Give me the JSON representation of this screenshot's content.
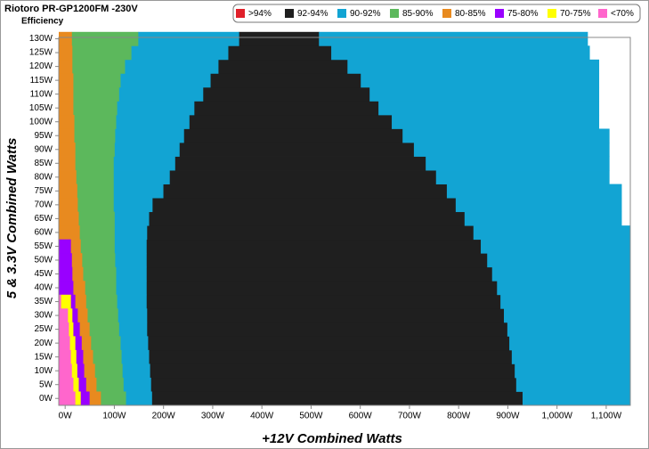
{
  "chart_data": {
    "type": "efficiency-map",
    "title": "Riotoro PR-GP1200FM -230V",
    "subtitle": "Efficiency",
    "xlabel": "+12V Combined Watts",
    "ylabel": "5 & 3.3V Combined Watts",
    "xlim": [
      -13,
      1149
    ],
    "ylim": [
      -2.5,
      130.5
    ],
    "xticks": [
      {
        "value": 0,
        "label": "0W"
      },
      {
        "value": 100,
        "label": "100W"
      },
      {
        "value": 200,
        "label": "200W"
      },
      {
        "value": 300,
        "label": "300W"
      },
      {
        "value": 400,
        "label": "400W"
      },
      {
        "value": 500,
        "label": "500W"
      },
      {
        "value": 600,
        "label": "600W"
      },
      {
        "value": 700,
        "label": "700W"
      },
      {
        "value": 800,
        "label": "800W"
      },
      {
        "value": 900,
        "label": "900W"
      },
      {
        "value": 1000,
        "label": "1,000W"
      },
      {
        "value": 1100,
        "label": "1,100W"
      }
    ],
    "yticks": [
      {
        "value": 0,
        "label": "0W"
      },
      {
        "value": 5,
        "label": "5W"
      },
      {
        "value": 10,
        "label": "10W"
      },
      {
        "value": 15,
        "label": "15W"
      },
      {
        "value": 20,
        "label": "20W"
      },
      {
        "value": 25,
        "label": "25W"
      },
      {
        "value": 30,
        "label": "30W"
      },
      {
        "value": 35,
        "label": "35W"
      },
      {
        "value": 40,
        "label": "40W"
      },
      {
        "value": 45,
        "label": "45W"
      },
      {
        "value": 50,
        "label": "50W"
      },
      {
        "value": 55,
        "label": "55W"
      },
      {
        "value": 60,
        "label": "60W"
      },
      {
        "value": 65,
        "label": "65W"
      },
      {
        "value": 70,
        "label": "70W"
      },
      {
        "value": 75,
        "label": "75W"
      },
      {
        "value": 80,
        "label": "80W"
      },
      {
        "value": 85,
        "label": "85W"
      },
      {
        "value": 90,
        "label": "90W"
      },
      {
        "value": 95,
        "label": "95W"
      },
      {
        "value": 100,
        "label": "100W"
      },
      {
        "value": 105,
        "label": "105W"
      },
      {
        "value": 110,
        "label": "110W"
      },
      {
        "value": 115,
        "label": "115W"
      },
      {
        "value": 120,
        "label": "120W"
      },
      {
        "value": 125,
        "label": "125W"
      },
      {
        "value": 130,
        "label": "130W"
      }
    ],
    "series": [
      {
        "name": ">94%",
        "color": "#e0202a",
        "spans": []
      },
      {
        "name": "92-94%",
        "color": "#1f1f1f",
        "spans": [
          [
            0,
            176,
            930
          ],
          [
            5,
            174,
            917
          ],
          [
            10,
            172,
            914
          ],
          [
            15,
            170,
            908
          ],
          [
            20,
            168,
            903
          ],
          [
            25,
            166,
            899
          ],
          [
            30,
            166,
            892
          ],
          [
            35,
            165,
            885
          ],
          [
            40,
            165,
            878
          ],
          [
            45,
            165,
            868
          ],
          [
            50,
            165,
            858
          ],
          [
            55,
            165,
            845
          ],
          [
            60,
            166,
            830
          ],
          [
            65,
            170,
            812
          ],
          [
            70,
            177,
            794
          ],
          [
            75,
            199,
            776
          ],
          [
            80,
            212,
            754
          ],
          [
            85,
            223,
            733
          ],
          [
            90,
            232,
            709
          ],
          [
            95,
            241,
            686
          ],
          [
            100,
            252,
            664
          ],
          [
            105,
            262,
            637
          ],
          [
            110,
            280,
            619
          ],
          [
            115,
            295,
            601
          ],
          [
            120,
            311,
            574
          ],
          [
            125,
            331,
            541
          ],
          [
            130,
            353,
            516
          ]
        ]
      },
      {
        "name": "90-92%",
        "color": "#12a4d3",
        "spans": [
          [
            0,
            123,
            176
          ],
          [
            5,
            118,
            174
          ],
          [
            10,
            116,
            172
          ],
          [
            15,
            114,
            170
          ],
          [
            20,
            112,
            168
          ],
          [
            25,
            109,
            166
          ],
          [
            30,
            107,
            166
          ],
          [
            35,
            105,
            165
          ],
          [
            40,
            103,
            165
          ],
          [
            45,
            103,
            165
          ],
          [
            50,
            101,
            165
          ],
          [
            55,
            100,
            165
          ],
          [
            60,
            100,
            166
          ],
          [
            65,
            100,
            170
          ],
          [
            70,
            98,
            177
          ],
          [
            75,
            98,
            199
          ],
          [
            80,
            98,
            212
          ],
          [
            85,
            98,
            223
          ],
          [
            90,
            100,
            232
          ],
          [
            95,
            101,
            241
          ],
          [
            100,
            103,
            252
          ],
          [
            105,
            105,
            262
          ],
          [
            110,
            109,
            280
          ],
          [
            115,
            112,
            295
          ],
          [
            120,
            121,
            311
          ],
          [
            125,
            134,
            331
          ],
          [
            130,
            148,
            353
          ],
          [
            0,
            930,
            1149
          ],
          [
            5,
            917,
            1149
          ],
          [
            10,
            914,
            1149
          ],
          [
            15,
            908,
            1149
          ],
          [
            20,
            903,
            1149
          ],
          [
            25,
            899,
            1149
          ],
          [
            30,
            892,
            1149
          ],
          [
            35,
            885,
            1149
          ],
          [
            40,
            878,
            1149
          ],
          [
            45,
            868,
            1149
          ],
          [
            50,
            858,
            1149
          ],
          [
            55,
            845,
            1149
          ],
          [
            60,
            830,
            1149
          ],
          [
            65,
            812,
            1131
          ],
          [
            70,
            794,
            1131
          ],
          [
            75,
            776,
            1131
          ],
          [
            80,
            754,
            1106
          ],
          [
            85,
            733,
            1106
          ],
          [
            90,
            709,
            1106
          ],
          [
            95,
            686,
            1106
          ],
          [
            100,
            664,
            1085
          ],
          [
            105,
            637,
            1085
          ],
          [
            110,
            619,
            1085
          ],
          [
            115,
            601,
            1085
          ],
          [
            120,
            574,
            1085
          ],
          [
            125,
            541,
            1066
          ],
          [
            130,
            516,
            1062
          ]
        ]
      },
      {
        "name": "85-90%",
        "color": "#5cb85c",
        "spans": [
          [
            0,
            72,
            123
          ],
          [
            5,
            63,
            118
          ],
          [
            10,
            60,
            116
          ],
          [
            15,
            56,
            114
          ],
          [
            20,
            52,
            112
          ],
          [
            25,
            49,
            109
          ],
          [
            30,
            45,
            107
          ],
          [
            35,
            42,
            105
          ],
          [
            40,
            40,
            103
          ],
          [
            45,
            36,
            103
          ],
          [
            50,
            34,
            101
          ],
          [
            55,
            31,
            100
          ],
          [
            60,
            29,
            100
          ],
          [
            65,
            27,
            100
          ],
          [
            70,
            25,
            98
          ],
          [
            75,
            24,
            98
          ],
          [
            80,
            22,
            98
          ],
          [
            85,
            20,
            98
          ],
          [
            90,
            20,
            100
          ],
          [
            95,
            18,
            101
          ],
          [
            100,
            18,
            103
          ],
          [
            105,
            16,
            105
          ],
          [
            110,
            16,
            109
          ],
          [
            115,
            16,
            112
          ],
          [
            120,
            14,
            121
          ],
          [
            125,
            14,
            134
          ],
          [
            130,
            13,
            148
          ]
        ]
      },
      {
        "name": "80-85%",
        "color": "#e88a1f",
        "spans": [
          [
            0,
            49,
            72
          ],
          [
            5,
            42,
            63
          ],
          [
            10,
            38,
            60
          ],
          [
            15,
            36,
            56
          ],
          [
            20,
            33,
            52
          ],
          [
            25,
            29,
            49
          ],
          [
            30,
            25,
            45
          ],
          [
            35,
            20,
            42
          ],
          [
            40,
            16,
            40
          ],
          [
            45,
            14,
            36
          ],
          [
            50,
            13,
            34
          ],
          [
            55,
            11,
            31
          ],
          [
            60,
            -13,
            29
          ],
          [
            65,
            -13,
            27
          ],
          [
            70,
            -13,
            25
          ],
          [
            75,
            -13,
            24
          ],
          [
            80,
            -13,
            22
          ],
          [
            85,
            -13,
            20
          ],
          [
            90,
            -13,
            20
          ],
          [
            95,
            -13,
            18
          ],
          [
            100,
            -13,
            18
          ],
          [
            105,
            -13,
            16
          ],
          [
            110,
            -13,
            16
          ],
          [
            115,
            -13,
            16
          ],
          [
            120,
            -13,
            14
          ],
          [
            125,
            -13,
            14
          ],
          [
            130,
            -13,
            13
          ]
        ]
      },
      {
        "name": "75-80%",
        "color": "#9900ff",
        "spans": [
          [
            0,
            31,
            49
          ],
          [
            5,
            27,
            42
          ],
          [
            10,
            24,
            38
          ],
          [
            15,
            22,
            36
          ],
          [
            20,
            20,
            33
          ],
          [
            25,
            16,
            29
          ],
          [
            30,
            14,
            25
          ],
          [
            35,
            11,
            20
          ],
          [
            40,
            -13,
            16
          ],
          [
            45,
            -13,
            14
          ],
          [
            50,
            -13,
            13
          ],
          [
            55,
            -13,
            11
          ]
        ]
      },
      {
        "name": "70-75%",
        "color": "#ffff00",
        "spans": [
          [
            0,
            20,
            31
          ],
          [
            5,
            16,
            27
          ],
          [
            10,
            13,
            24
          ],
          [
            15,
            11,
            22
          ],
          [
            20,
            9,
            20
          ],
          [
            25,
            7,
            16
          ],
          [
            30,
            5,
            14
          ],
          [
            35,
            -9,
            11
          ]
        ]
      },
      {
        "name": "<70%",
        "color": "#ff66cc",
        "spans": [
          [
            0,
            -13,
            20
          ],
          [
            5,
            -13,
            16
          ],
          [
            10,
            -13,
            13
          ],
          [
            15,
            -13,
            11
          ],
          [
            20,
            -13,
            9
          ],
          [
            25,
            -13,
            7
          ],
          [
            30,
            -13,
            5
          ],
          [
            35,
            -13,
            -9
          ]
        ]
      }
    ]
  }
}
